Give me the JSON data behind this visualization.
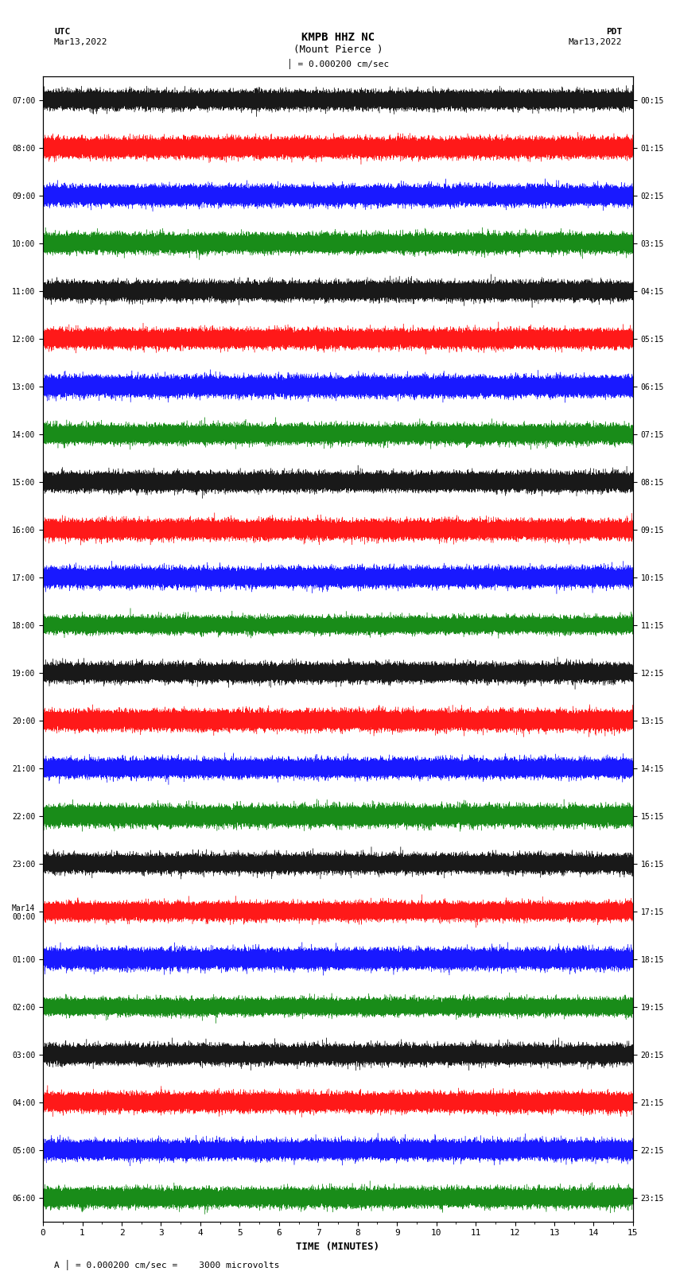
{
  "title_line1": "KMPB HHZ NC",
  "title_line2": "(Mount Pierce )",
  "scale_text": "= 0.000200 cm/sec",
  "scale_label": "A",
  "bottom_scale_text": "= 0.000200 cm/sec =    3000 microvolts",
  "utc_label": "UTC",
  "utc_date": "Mar13,2022",
  "pdt_label": "PDT",
  "pdt_date": "Mar13,2022",
  "xlabel": "TIME (MINUTES)",
  "left_times": [
    "07:00",
    "08:00",
    "09:00",
    "10:00",
    "11:00",
    "12:00",
    "13:00",
    "14:00",
    "15:00",
    "16:00",
    "17:00",
    "18:00",
    "19:00",
    "20:00",
    "21:00",
    "22:00",
    "23:00",
    "Mar14\n00:00",
    "01:00",
    "02:00",
    "03:00",
    "04:00",
    "05:00",
    "06:00"
  ],
  "right_times": [
    "00:15",
    "01:15",
    "02:15",
    "03:15",
    "04:15",
    "05:15",
    "06:15",
    "07:15",
    "08:15",
    "09:15",
    "10:15",
    "11:15",
    "12:15",
    "13:15",
    "14:15",
    "15:15",
    "16:15",
    "17:15",
    "18:15",
    "19:15",
    "20:15",
    "21:15",
    "22:15",
    "23:15"
  ],
  "n_traces": 24,
  "minutes_per_trace": 15,
  "sample_rate": 100,
  "trace_colors": [
    "black",
    "red",
    "blue",
    "green"
  ],
  "background_color": "white",
  "fig_width": 8.5,
  "fig_height": 16.13,
  "dpi": 100,
  "amplitude_scale": 0.35,
  "noise_seed": 42
}
